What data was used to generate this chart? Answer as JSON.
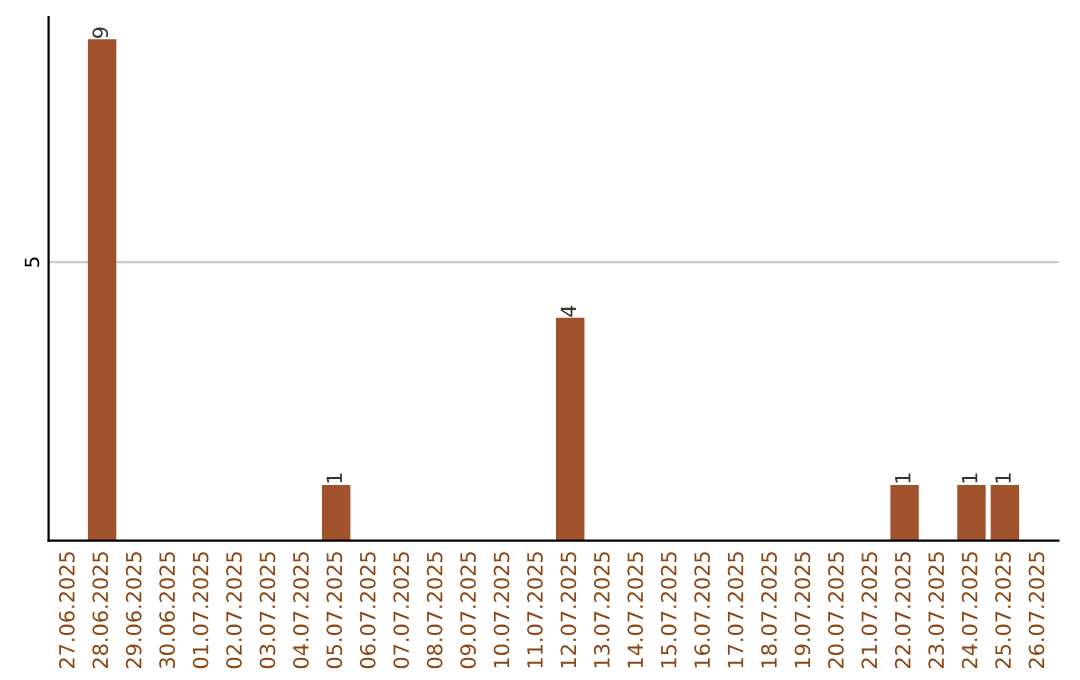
{
  "chart_data": {
    "type": "bar",
    "categories": [
      "27.06.2025",
      "28.06.2025",
      "29.06.2025",
      "30.06.2025",
      "01.07.2025",
      "02.07.2025",
      "03.07.2025",
      "04.07.2025",
      "05.07.2025",
      "06.07.2025",
      "07.07.2025",
      "08.07.2025",
      "09.07.2025",
      "10.07.2025",
      "11.07.2025",
      "12.07.2025",
      "13.07.2025",
      "14.07.2025",
      "15.07.2025",
      "16.07.2025",
      "17.07.2025",
      "18.07.2025",
      "19.07.2025",
      "20.07.2025",
      "21.07.2025",
      "22.07.2025",
      "23.07.2025",
      "24.07.2025",
      "25.07.2025",
      "26.07.2025"
    ],
    "values": [
      0,
      9,
      0,
      0,
      0,
      0,
      0,
      0,
      1,
      0,
      0,
      0,
      0,
      0,
      0,
      4,
      0,
      0,
      0,
      0,
      0,
      0,
      0,
      0,
      0,
      1,
      0,
      1,
      1,
      0
    ],
    "color": "#a0522d",
    "value_labels": [
      null,
      "9",
      null,
      null,
      null,
      null,
      null,
      null,
      "1",
      null,
      null,
      null,
      null,
      null,
      null,
      "4",
      null,
      null,
      null,
      null,
      null,
      null,
      null,
      null,
      null,
      "1",
      null,
      "1",
      "1",
      null
    ],
    "ylim": [
      0,
      9.4
    ],
    "yticks": [
      5
    ],
    "grid": "y"
  }
}
